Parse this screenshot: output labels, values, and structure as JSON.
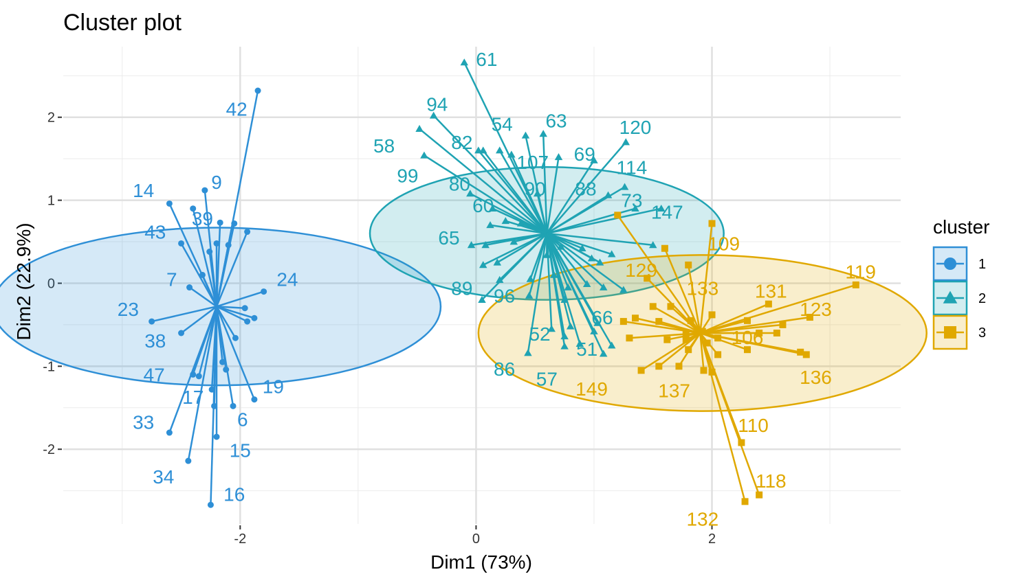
{
  "chart_data": {
    "type": "scatter",
    "title": "Cluster plot",
    "xlabel": "Dim1 (73%)",
    "ylabel": "Dim2 (22.9%)",
    "xlim": [
      -3.5,
      3.6
    ],
    "ylim": [
      -2.9,
      2.85
    ],
    "x_ticks": [
      -2,
      0,
      2
    ],
    "y_ticks": [
      -2,
      -1,
      0,
      1,
      2
    ],
    "x_tick_labels": [
      "-2",
      "0",
      "2"
    ],
    "y_tick_labels": [
      "-2",
      "-1",
      "0",
      "1",
      "2"
    ],
    "grid": true,
    "legend": {
      "title": "cluster",
      "position": "right",
      "entries": [
        {
          "label": "1",
          "color": "#2E8FD6",
          "shape": "circle"
        },
        {
          "label": "2",
          "color": "#1FA3B3",
          "shape": "triangle"
        },
        {
          "label": "3",
          "color": "#E0A800",
          "shape": "square"
        }
      ]
    },
    "clusters": [
      {
        "name": "1",
        "color": "#2E8FD6",
        "shape": "circle",
        "center": [
          -2.2,
          -0.28
        ],
        "ellipse": {
          "cx": -2.2,
          "cy": -0.28,
          "rx": 1.9,
          "ry": 0.95
        },
        "points": [
          {
            "label": "42",
            "x": -1.85,
            "y": 2.32,
            "lx": -2.03,
            "ly": 2.1
          },
          {
            "label": "9",
            "x": -2.3,
            "y": 1.12,
            "lx": -2.2,
            "ly": 1.22
          },
          {
            "label": "14",
            "x": -2.6,
            "y": 0.96,
            "lx": -2.82,
            "ly": 1.12
          },
          {
            "label": "39",
            "x": -2.4,
            "y": 0.9,
            "lx": -2.32,
            "ly": 0.78
          },
          {
            "label": "43",
            "x": -2.5,
            "y": 0.48,
            "lx": -2.72,
            "ly": 0.62
          },
          {
            "label": "7",
            "x": -2.43,
            "y": -0.05,
            "lx": -2.58,
            "ly": 0.05
          },
          {
            "label": "24",
            "x": -1.8,
            "y": -0.1,
            "lx": -1.6,
            "ly": 0.05
          },
          {
            "label": "23",
            "x": -2.75,
            "y": -0.46,
            "lx": -2.95,
            "ly": -0.31
          },
          {
            "label": "38",
            "x": -2.5,
            "y": -0.6,
            "lx": -2.72,
            "ly": -0.69
          },
          {
            "label": "47",
            "x": -2.4,
            "y": -1.1,
            "lx": -2.73,
            "ly": -1.1
          },
          {
            "label": "19",
            "x": -1.88,
            "y": -1.4,
            "lx": -1.72,
            "ly": -1.24
          },
          {
            "label": "17",
            "x": -2.35,
            "y": -1.12,
            "lx": -2.4,
            "ly": -1.37
          },
          {
            "label": "6",
            "x": -2.06,
            "y": -1.48,
            "lx": -1.98,
            "ly": -1.64
          },
          {
            "label": "33",
            "x": -2.6,
            "y": -1.8,
            "lx": -2.82,
            "ly": -1.67
          },
          {
            "label": "15",
            "x": -2.2,
            "y": -1.85,
            "lx": -2.0,
            "ly": -2.01
          },
          {
            "label": "34",
            "x": -2.44,
            "y": -2.14,
            "lx": -2.65,
            "ly": -2.33
          },
          {
            "label": "16",
            "x": -2.25,
            "y": -2.67,
            "lx": -2.05,
            "ly": -2.54
          },
          {
            "label": "",
            "x": -2.17,
            "y": 0.73
          },
          {
            "label": "",
            "x": -2.05,
            "y": 0.72
          },
          {
            "label": "",
            "x": -1.94,
            "y": 0.62
          },
          {
            "label": "",
            "x": -2.26,
            "y": 0.38
          },
          {
            "label": "",
            "x": -2.2,
            "y": 0.48
          },
          {
            "label": "",
            "x": -2.1,
            "y": 0.46
          },
          {
            "label": "",
            "x": -2.32,
            "y": 0.1
          },
          {
            "label": "",
            "x": -1.96,
            "y": -0.3
          },
          {
            "label": "",
            "x": -1.88,
            "y": -0.42
          },
          {
            "label": "",
            "x": -1.94,
            "y": -0.46
          },
          {
            "label": "",
            "x": -2.04,
            "y": -0.66
          },
          {
            "label": "",
            "x": -2.15,
            "y": -0.95
          },
          {
            "label": "",
            "x": -2.12,
            "y": -1.04
          },
          {
            "label": "",
            "x": -2.24,
            "y": -1.28
          },
          {
            "label": "",
            "x": -2.22,
            "y": -1.48
          }
        ]
      },
      {
        "name": "2",
        "color": "#1FA3B3",
        "shape": "triangle",
        "center": [
          0.6,
          0.6
        ],
        "ellipse": {
          "cx": 0.6,
          "cy": 0.6,
          "rx": 1.5,
          "ry": 0.8
        },
        "points": [
          {
            "label": "61",
            "x": -0.1,
            "y": 2.66,
            "lx": 0.09,
            "ly": 2.7
          },
          {
            "label": "94",
            "x": -0.36,
            "y": 2.02,
            "lx": -0.33,
            "ly": 2.16
          },
          {
            "label": "54",
            "x": 0.42,
            "y": 1.78,
            "lx": 0.22,
            "ly": 1.92
          },
          {
            "label": "63",
            "x": 0.57,
            "y": 1.8,
            "lx": 0.68,
            "ly": 1.96
          },
          {
            "label": "120",
            "x": 1.27,
            "y": 1.7,
            "lx": 1.35,
            "ly": 1.88
          },
          {
            "label": "58",
            "x": -0.48,
            "y": 1.86,
            "lx": -0.78,
            "ly": 1.66
          },
          {
            "label": "82",
            "x": 0.06,
            "y": 1.6,
            "lx": -0.12,
            "ly": 1.7
          },
          {
            "label": "107",
            "x": 0.7,
            "y": 1.52,
            "lx": 0.48,
            "ly": 1.46
          },
          {
            "label": "69",
            "x": 1.0,
            "y": 1.48,
            "lx": 0.92,
            "ly": 1.56
          },
          {
            "label": "114",
            "x": 1.26,
            "y": 1.16,
            "lx": 1.32,
            "ly": 1.4
          },
          {
            "label": "99",
            "x": -0.44,
            "y": 1.54,
            "lx": -0.58,
            "ly": 1.3
          },
          {
            "label": "80",
            "x": -0.05,
            "y": 1.08,
            "lx": -0.14,
            "ly": 1.2
          },
          {
            "label": "90",
            "x": 0.52,
            "y": 1.08,
            "lx": 0.5,
            "ly": 1.14
          },
          {
            "label": "88",
            "x": 1.12,
            "y": 1.06,
            "lx": 0.93,
            "ly": 1.14
          },
          {
            "label": "73",
            "x": 1.35,
            "y": 0.9,
            "lx": 1.32,
            "ly": 1.0
          },
          {
            "label": "147",
            "x": 1.57,
            "y": 0.9,
            "lx": 1.62,
            "ly": 0.86
          },
          {
            "label": "60",
            "x": 0.14,
            "y": 0.9,
            "lx": 0.06,
            "ly": 0.94
          },
          {
            "label": "65",
            "x": -0.04,
            "y": 0.46,
            "lx": -0.23,
            "ly": 0.55
          },
          {
            "label": "89",
            "x": 0.05,
            "y": -0.2,
            "lx": -0.12,
            "ly": -0.06
          },
          {
            "label": "96",
            "x": 0.45,
            "y": -0.15,
            "lx": 0.24,
            "ly": -0.15
          },
          {
            "label": "52",
            "x": 0.64,
            "y": -0.55,
            "lx": 0.54,
            "ly": -0.61
          },
          {
            "label": "66",
            "x": 1.03,
            "y": -0.48,
            "lx": 1.07,
            "ly": -0.41
          },
          {
            "label": "51",
            "x": 0.88,
            "y": -0.73,
            "lx": 0.94,
            "ly": -0.79
          },
          {
            "label": "86",
            "x": 0.44,
            "y": -0.84,
            "lx": 0.24,
            "ly": -1.03
          },
          {
            "label": "57",
            "x": 0.75,
            "y": -0.76,
            "lx": 0.6,
            "ly": -1.15
          },
          {
            "label": "",
            "x": 0.02,
            "y": 1.6
          },
          {
            "label": "",
            "x": 0.2,
            "y": 1.6
          },
          {
            "label": "",
            "x": 0.3,
            "y": 1.55
          },
          {
            "label": "",
            "x": 0.12,
            "y": 0.7
          },
          {
            "label": "",
            "x": 0.25,
            "y": 0.75
          },
          {
            "label": "",
            "x": 0.38,
            "y": 0.72
          },
          {
            "label": "",
            "x": 0.08,
            "y": 0.46
          },
          {
            "label": "",
            "x": 0.32,
            "y": 0.5
          },
          {
            "label": "",
            "x": 0.6,
            "y": 0.34
          },
          {
            "label": "",
            "x": 0.72,
            "y": 0.44
          },
          {
            "label": "",
            "x": 0.9,
            "y": 0.42
          },
          {
            "label": "",
            "x": 1.15,
            "y": 0.35
          },
          {
            "label": "",
            "x": 1.5,
            "y": 0.46
          },
          {
            "label": "",
            "x": 0.06,
            "y": 0.22
          },
          {
            "label": "",
            "x": 0.18,
            "y": 0.25
          },
          {
            "label": "",
            "x": 0.98,
            "y": 0.3
          },
          {
            "label": "",
            "x": 1.05,
            "y": 0.25
          },
          {
            "label": "",
            "x": 0.2,
            "y": 0.04
          },
          {
            "label": "",
            "x": 0.46,
            "y": 0.05
          },
          {
            "label": "",
            "x": 0.66,
            "y": 0.1
          },
          {
            "label": "",
            "x": 0.78,
            "y": -0.05
          },
          {
            "label": "",
            "x": 0.94,
            "y": -0.01
          },
          {
            "label": "",
            "x": 1.08,
            "y": -0.05
          },
          {
            "label": "",
            "x": 1.25,
            "y": -0.08
          },
          {
            "label": "",
            "x": 0.75,
            "y": -0.2
          },
          {
            "label": "",
            "x": 0.8,
            "y": -0.52
          },
          {
            "label": "",
            "x": 1.0,
            "y": -0.58
          },
          {
            "label": "",
            "x": 0.75,
            "y": -0.64
          },
          {
            "label": "",
            "x": 1.08,
            "y": -0.85
          },
          {
            "label": "",
            "x": 1.15,
            "y": -0.75
          }
        ]
      },
      {
        "name": "3",
        "color": "#E0A800",
        "shape": "square",
        "center": [
          1.9,
          -0.6
        ],
        "ellipse": {
          "cx": 1.92,
          "cy": -0.6,
          "rx": 1.9,
          "ry": 0.94
        },
        "points": [
          {
            "label": "109",
            "x": 2.0,
            "y": 0.72,
            "lx": 2.1,
            "ly": 0.48
          },
          {
            "label": "129",
            "x": 1.6,
            "y": 0.42,
            "lx": 1.4,
            "ly": 0.16
          },
          {
            "label": "119",
            "x": 3.22,
            "y": -0.02,
            "lx": 3.26,
            "ly": 0.14
          },
          {
            "label": "133",
            "x": 1.8,
            "y": 0.22,
            "lx": 1.92,
            "ly": -0.06
          },
          {
            "label": "131",
            "x": 2.48,
            "y": -0.25,
            "lx": 2.5,
            "ly": -0.09
          },
          {
            "label": "123",
            "x": 2.83,
            "y": -0.41,
            "lx": 2.88,
            "ly": -0.31
          },
          {
            "label": "106",
            "x": 2.4,
            "y": -0.6,
            "lx": 2.3,
            "ly": -0.65
          },
          {
            "label": "136",
            "x": 2.8,
            "y": -0.86,
            "lx": 2.88,
            "ly": -1.13
          },
          {
            "label": "149",
            "x": 1.3,
            "y": -0.66,
            "lx": 0.98,
            "ly": -1.27
          },
          {
            "label": "137",
            "x": 1.93,
            "y": -1.05,
            "lx": 1.68,
            "ly": -1.29
          },
          {
            "label": "110",
            "x": 2.25,
            "y": -1.92,
            "lx": 2.35,
            "ly": -1.71
          },
          {
            "label": "118",
            "x": 2.4,
            "y": -2.55,
            "lx": 2.5,
            "ly": -2.38
          },
          {
            "label": "132",
            "x": 2.28,
            "y": -2.63,
            "lx": 1.92,
            "ly": -2.84
          },
          {
            "label": "",
            "x": 1.2,
            "y": 0.82
          },
          {
            "label": "",
            "x": 1.45,
            "y": 0.06
          },
          {
            "label": "",
            "x": 1.65,
            "y": -0.28
          },
          {
            "label": "",
            "x": 1.5,
            "y": -0.28
          },
          {
            "label": "",
            "x": 1.55,
            "y": -0.46
          },
          {
            "label": "",
            "x": 1.35,
            "y": -0.42
          },
          {
            "label": "",
            "x": 1.62,
            "y": -0.68
          },
          {
            "label": "",
            "x": 1.78,
            "y": -0.62
          },
          {
            "label": "",
            "x": 1.92,
            "y": -0.58
          },
          {
            "label": "",
            "x": 1.96,
            "y": -0.72
          },
          {
            "label": "",
            "x": 2.05,
            "y": -0.66
          },
          {
            "label": "",
            "x": 2.05,
            "y": -0.86
          },
          {
            "label": "",
            "x": 1.55,
            "y": -1.0
          },
          {
            "label": "",
            "x": 1.4,
            "y": -1.05
          },
          {
            "label": "",
            "x": 1.72,
            "y": -1.0
          },
          {
            "label": "",
            "x": 2.0,
            "y": -1.07
          },
          {
            "label": "",
            "x": 2.3,
            "y": -0.8
          },
          {
            "label": "",
            "x": 2.75,
            "y": -0.83
          },
          {
            "label": "",
            "x": 1.25,
            "y": -0.46
          },
          {
            "label": "",
            "x": 1.8,
            "y": -0.8
          },
          {
            "label": "",
            "x": 1.82,
            "y": -0.45
          },
          {
            "label": "",
            "x": 1.78,
            "y": -0.68
          },
          {
            "label": "",
            "x": 2.6,
            "y": -0.5
          },
          {
            "label": "",
            "x": 2.55,
            "y": -0.6
          },
          {
            "label": "",
            "x": 2.3,
            "y": -0.45
          },
          {
            "label": "",
            "x": 2.0,
            "y": -0.38
          }
        ]
      }
    ]
  }
}
